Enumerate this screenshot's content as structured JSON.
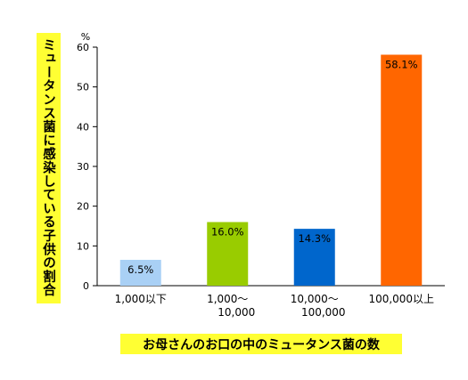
{
  "chart_data": {
    "type": "bar",
    "categories": [
      [
        "1,000以下"
      ],
      [
        "1,000～",
        "10,000"
      ],
      [
        "10,000～",
        "100,000"
      ],
      [
        "100,000以上"
      ]
    ],
    "values": [
      6.5,
      16.0,
      14.3,
      58.1
    ],
    "value_labels": [
      "6.5%",
      "16.0%",
      "14.3%",
      "58.1%"
    ],
    "bar_colors": [
      "#a9d0f5",
      "#99cc00",
      "#0066cc",
      "#ff6600"
    ],
    "ylabel": "ミュータンス菌に感染している子供の割合",
    "xlabel": "お母さんのお口の中のミュータンス菌の数",
    "y_unit": "%",
    "ylim": [
      0,
      60
    ],
    "yticks": [
      0,
      10,
      20,
      30,
      40,
      50,
      60
    ],
    "grid": false,
    "label_highlight_color": "#ffff33"
  }
}
